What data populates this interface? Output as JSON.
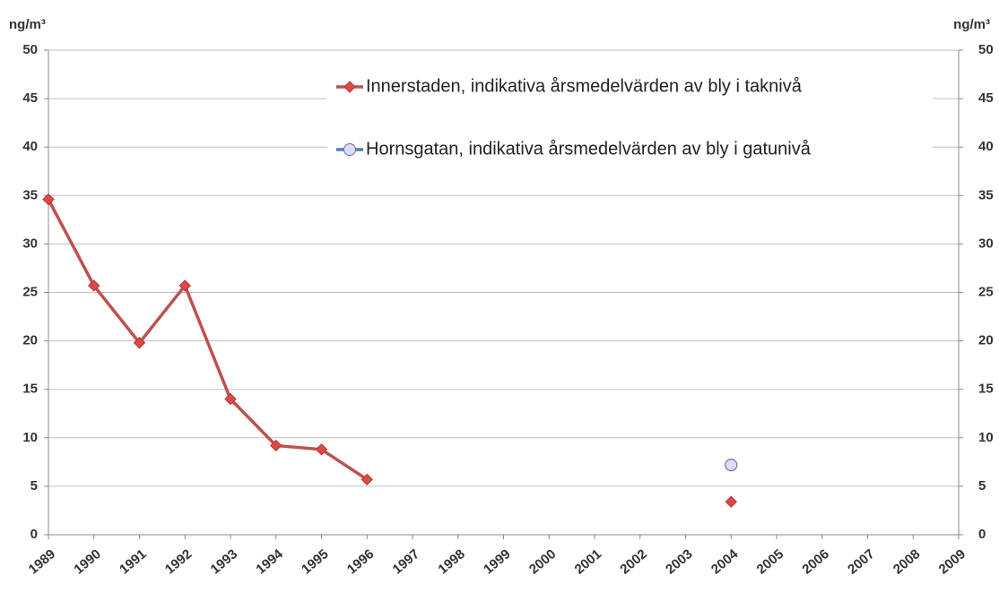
{
  "chart_data": {
    "type": "line",
    "y_label": "ng/m³",
    "y2_label": "ng/m³",
    "categories": [
      "1989",
      "1990",
      "1991",
      "1992",
      "1993",
      "1994",
      "1995",
      "1996",
      "1997",
      "1998",
      "1999",
      "2000",
      "2001",
      "2002",
      "2003",
      "2004",
      "2005",
      "2006",
      "2007",
      "2008",
      "2009"
    ],
    "series": [
      {
        "name": "Innerstaden, indikativa årsmedelvärden av bly i taknivå",
        "color": "#c0504d",
        "marker": "diamond",
        "values": [
          34.6,
          25.7,
          19.8,
          25.7,
          14.0,
          9.2,
          8.8,
          5.7,
          null,
          null,
          null,
          null,
          null,
          null,
          null,
          3.4,
          null,
          null,
          null,
          null,
          null
        ]
      },
      {
        "name": "Hornsgatan, indikativa årsmedelvärden av bly i gatunivå",
        "color": "#4f81bd",
        "marker": "circle",
        "values": [
          null,
          null,
          null,
          null,
          null,
          null,
          null,
          null,
          null,
          null,
          null,
          null,
          null,
          null,
          null,
          7.2,
          null,
          null,
          null,
          null,
          null
        ]
      }
    ],
    "ylim": [
      0,
      50
    ],
    "yticks": [
      0,
      5,
      10,
      15,
      20,
      25,
      30,
      35,
      40,
      45,
      50
    ],
    "y2lim": [
      0,
      50
    ],
    "y2ticks": [
      0,
      5,
      10,
      15,
      20,
      25,
      30,
      35,
      40,
      45,
      50
    ],
    "grid": true,
    "legend": "top-right"
  }
}
